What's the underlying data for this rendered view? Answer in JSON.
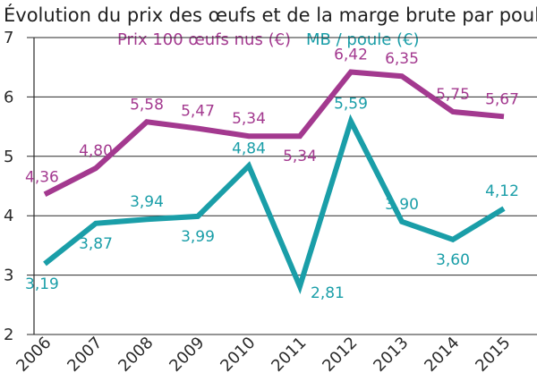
{
  "chart_data": {
    "type": "line",
    "title": "Évolution du prix des œufs et de la marge brute par poule",
    "categories": [
      "2006",
      "2007",
      "2008",
      "2009",
      "2010",
      "2011",
      "2012",
      "2013",
      "2014",
      "2015"
    ],
    "series": [
      {
        "name": "Prix 100 œufs nus (€)",
        "color": "#a3398f",
        "values": [
          4.36,
          4.8,
          5.58,
          5.47,
          5.34,
          5.34,
          6.42,
          6.35,
          5.75,
          5.67
        ],
        "labels": [
          "4,36",
          "4,80",
          "5,58",
          "5,47",
          "5,34",
          "5,34",
          "6,42",
          "6,35",
          "5,75",
          "5,67"
        ],
        "label_pos": [
          "above",
          "above",
          "above",
          "above",
          "above",
          "below",
          "above",
          "above",
          "above",
          "above"
        ]
      },
      {
        "name": "MB / poule (€)",
        "color": "#1a9ea8",
        "values": [
          3.19,
          3.87,
          3.94,
          3.99,
          4.84,
          2.81,
          5.59,
          3.9,
          3.6,
          4.12
        ],
        "labels": [
          "3,19",
          "3,87",
          "3,94",
          "3,99",
          "4,84",
          "2,81",
          "5,59",
          "3,90",
          "3,60",
          "4,12"
        ],
        "label_pos": [
          "below",
          "below",
          "above",
          "below",
          "above",
          "right",
          "above",
          "above",
          "below",
          "above"
        ]
      }
    ],
    "ylim": [
      2,
      7
    ],
    "yticks": [
      "2",
      "3",
      "4",
      "5",
      "6",
      "7"
    ],
    "xlabel": "",
    "ylabel": "",
    "grid": true,
    "legend_position": "top"
  }
}
